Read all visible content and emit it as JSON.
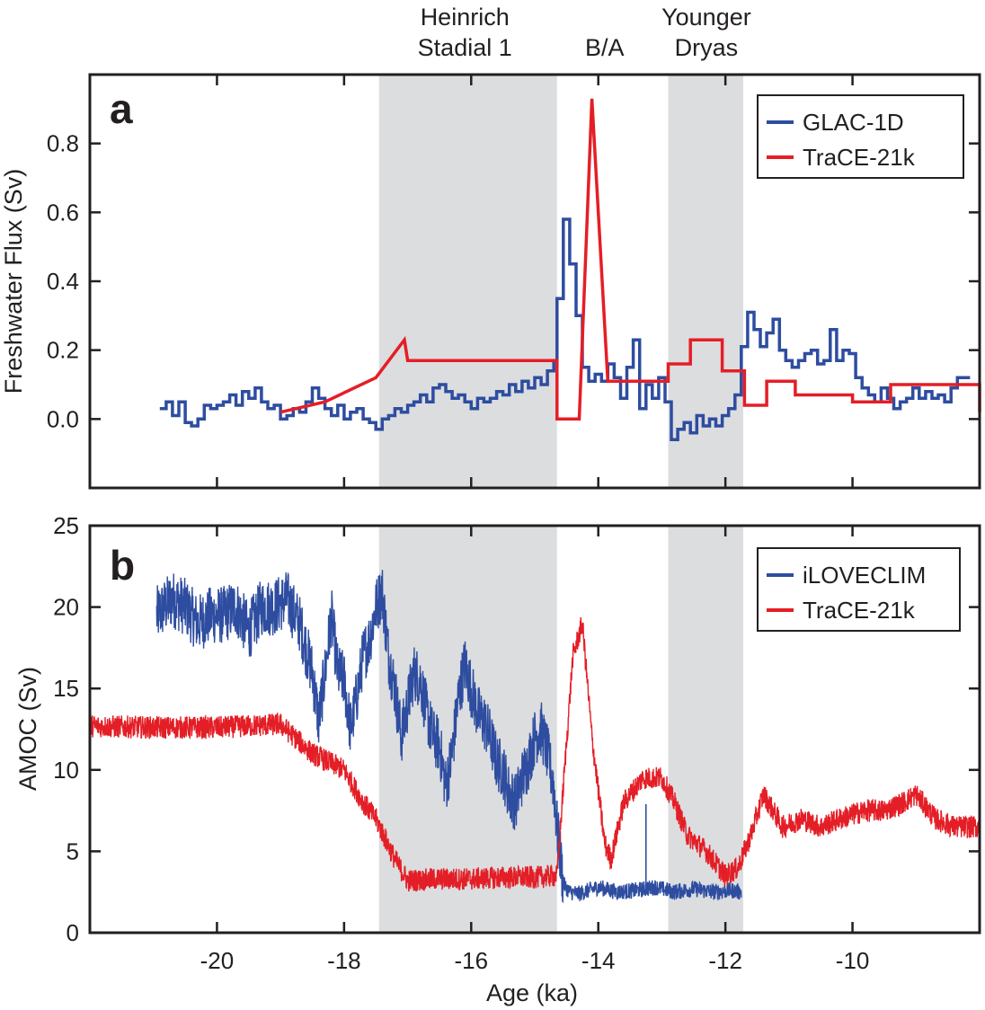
{
  "colors": {
    "blue": "#2e4da0",
    "red": "#e41e26",
    "band": "#dcdddf",
    "axis": "#231f20"
  },
  "event_labels": [
    {
      "lines": [
        "Heinrich",
        "Stadial 1"
      ],
      "x_ka": -16.1
    },
    {
      "lines": [
        "B/A"
      ],
      "x_ka": -13.9
    },
    {
      "lines": [
        "Younger",
        "Dryas"
      ],
      "x_ka": -12.3
    }
  ],
  "shaded_periods": [
    [
      -17.45,
      -14.65
    ],
    [
      -12.9,
      -11.72
    ]
  ],
  "xaxis": {
    "label": "Age (ka)",
    "range": [
      -22,
      -8
    ],
    "ticks": [
      -20,
      -18,
      -16,
      -14,
      -12,
      -10
    ]
  },
  "chart_data": [
    {
      "type": "line",
      "panel": "a",
      "ylabel": "Freshwater Flux (Sv)",
      "ylim": [
        -0.2,
        1.0
      ],
      "yticks": [
        0.0,
        0.2,
        0.4,
        0.6,
        0.8
      ],
      "ytick_labels": [
        "0.0",
        "0.2",
        "0.4",
        "0.6",
        "0.8"
      ],
      "legend": "top-right",
      "series": [
        {
          "name": "GLAC-1D",
          "color": "#2e4da0",
          "style": "step",
          "x": [
            -20.9,
            -20.8,
            -20.7,
            -20.6,
            -20.5,
            -20.4,
            -20.3,
            -20.2,
            -20.1,
            -20.0,
            -19.9,
            -19.8,
            -19.7,
            -19.6,
            -19.5,
            -19.4,
            -19.3,
            -19.2,
            -19.1,
            -19.0,
            -18.9,
            -18.8,
            -18.7,
            -18.6,
            -18.5,
            -18.4,
            -18.3,
            -18.2,
            -18.1,
            -18.0,
            -17.9,
            -17.8,
            -17.7,
            -17.6,
            -17.5,
            -17.4,
            -17.3,
            -17.2,
            -17.1,
            -17.0,
            -16.9,
            -16.8,
            -16.7,
            -16.6,
            -16.5,
            -16.4,
            -16.3,
            -16.2,
            -16.1,
            -16.0,
            -15.9,
            -15.8,
            -15.7,
            -15.6,
            -15.5,
            -15.4,
            -15.3,
            -15.2,
            -15.1,
            -15.0,
            -14.9,
            -14.8,
            -14.7,
            -14.65,
            -14.55,
            -14.45,
            -14.35,
            -14.25,
            -14.15,
            -14.05,
            -13.95,
            -13.85,
            -13.75,
            -13.65,
            -13.55,
            -13.45,
            -13.35,
            -13.25,
            -13.15,
            -13.05,
            -12.95,
            -12.85,
            -12.75,
            -12.65,
            -12.55,
            -12.45,
            -12.35,
            -12.25,
            -12.15,
            -12.05,
            -11.95,
            -11.85,
            -11.75,
            -11.65,
            -11.55,
            -11.45,
            -11.35,
            -11.25,
            -11.15,
            -11.05,
            -10.95,
            -10.85,
            -10.75,
            -10.65,
            -10.55,
            -10.45,
            -10.35,
            -10.25,
            -10.15,
            -10.05,
            -9.95,
            -9.85,
            -9.75,
            -9.65,
            -9.55,
            -9.45,
            -9.35,
            -9.25,
            -9.15,
            -9.05,
            -8.95,
            -8.85,
            -8.75,
            -8.65,
            -8.55,
            -8.45,
            -8.35,
            -8.25
          ],
          "y": [
            0.03,
            0.05,
            0.01,
            0.05,
            -0.01,
            -0.02,
            0.0,
            0.04,
            0.03,
            0.04,
            0.05,
            0.07,
            0.04,
            0.08,
            0.06,
            0.09,
            0.05,
            0.03,
            0.04,
            0.0,
            0.01,
            0.03,
            0.02,
            0.05,
            0.09,
            0.06,
            0.03,
            0.01,
            0.04,
            0.0,
            0.02,
            0.03,
            0.0,
            -0.01,
            -0.03,
            0.0,
            0.01,
            0.03,
            0.02,
            0.04,
            0.05,
            0.07,
            0.05,
            0.09,
            0.1,
            0.08,
            0.06,
            0.07,
            0.05,
            0.03,
            0.06,
            0.05,
            0.06,
            0.08,
            0.07,
            0.1,
            0.08,
            0.11,
            0.09,
            0.12,
            0.1,
            0.14,
            0.17,
            0.35,
            0.58,
            0.45,
            0.3,
            0.15,
            0.11,
            0.13,
            0.11,
            0.16,
            0.12,
            0.06,
            0.15,
            0.23,
            0.03,
            0.1,
            0.06,
            0.12,
            0.05,
            -0.06,
            -0.03,
            -0.01,
            -0.04,
            0.01,
            -0.02,
            0.0,
            -0.02,
            0.01,
            0.03,
            0.07,
            0.21,
            0.31,
            0.26,
            0.21,
            0.25,
            0.29,
            0.2,
            0.17,
            0.15,
            0.17,
            0.19,
            0.2,
            0.16,
            0.17,
            0.26,
            0.17,
            0.2,
            0.19,
            0.12,
            0.09,
            0.07,
            0.05,
            0.09,
            0.06,
            0.03,
            0.05,
            0.06,
            0.09,
            0.06,
            0.08,
            0.06,
            0.07,
            0.05,
            0.09,
            0.12,
            0.12
          ]
        },
        {
          "name": "TraCE-21k",
          "color": "#e41e26",
          "style": "line",
          "x": [
            -19.0,
            -18.3,
            -17.5,
            -17.05,
            -17.0,
            -14.65,
            -14.65,
            -14.3,
            -14.1,
            -13.85,
            -12.9,
            -12.9,
            -12.55,
            -12.55,
            -12.05,
            -12.05,
            -11.7,
            -11.7,
            -11.35,
            -11.35,
            -10.9,
            -10.9,
            -10.0,
            -10.0,
            -9.4,
            -9.4,
            -8.0,
            -8.0
          ],
          "y": [
            0.02,
            0.05,
            0.12,
            0.23,
            0.17,
            0.17,
            0.0,
            0.0,
            0.93,
            0.11,
            0.11,
            0.16,
            0.16,
            0.23,
            0.23,
            0.14,
            0.14,
            0.04,
            0.04,
            0.11,
            0.11,
            0.07,
            0.07,
            0.05,
            0.05,
            0.1,
            0.1,
            0.02
          ]
        }
      ]
    },
    {
      "type": "line",
      "panel": "b",
      "ylabel": "AMOC (Sv)",
      "ylim": [
        0,
        25
      ],
      "yticks": [
        0,
        5,
        10,
        15,
        20,
        25
      ],
      "ytick_labels": [
        "0",
        "5",
        "10",
        "15",
        "20",
        "25"
      ],
      "legend": "top-right",
      "series": [
        {
          "name": "iLOVECLIM",
          "color": "#2e4da0",
          "noise": 1.8,
          "x": [
            -20.95,
            -20.7,
            -20.5,
            -20.3,
            -20.1,
            -19.9,
            -19.7,
            -19.5,
            -19.3,
            -19.1,
            -18.9,
            -18.7,
            -18.6,
            -18.5,
            -18.4,
            -18.3,
            -18.2,
            -18.1,
            -18.0,
            -17.9,
            -17.8,
            -17.7,
            -17.6,
            -17.5,
            -17.4,
            -17.3,
            -17.2,
            -17.1,
            -17.0,
            -16.9,
            -16.8,
            -16.7,
            -16.6,
            -16.5,
            -16.4,
            -16.3,
            -16.2,
            -16.1,
            -16.0,
            -15.9,
            -15.8,
            -15.7,
            -15.6,
            -15.5,
            -15.4,
            -15.3,
            -15.2,
            -15.1,
            -15.0,
            -14.9,
            -14.8,
            -14.7,
            -14.65,
            -14.55,
            -14.45,
            -14.3,
            -14.0,
            -13.7,
            -13.4,
            -13.1,
            -12.8,
            -12.5,
            -12.2,
            -11.9,
            -11.75
          ],
          "y": [
            19.5,
            20.5,
            20.0,
            19.0,
            19.5,
            19.5,
            20.0,
            18.5,
            20.0,
            20.0,
            20.5,
            19.0,
            17.5,
            16.0,
            13.0,
            16.0,
            19.5,
            16.0,
            15.5,
            12.5,
            14.5,
            17.0,
            18.0,
            20.0,
            21.0,
            17.0,
            15.0,
            12.0,
            14.0,
            16.0,
            15.5,
            13.5,
            12.0,
            11.5,
            9.0,
            11.0,
            14.5,
            16.5,
            15.0,
            13.5,
            13.0,
            12.0,
            10.5,
            10.0,
            8.5,
            8.0,
            9.5,
            10.5,
            12.0,
            12.5,
            11.0,
            9.0,
            6.5,
            3.0,
            2.5,
            2.4,
            2.8,
            2.5,
            2.6,
            2.8,
            2.5,
            2.7,
            2.5,
            2.6,
            2.5
          ]
        },
        {
          "name": "TraCE-21k",
          "color": "#e41e26",
          "noise": 0.7,
          "x": [
            -22.0,
            -21.0,
            -20.0,
            -19.0,
            -18.5,
            -18.0,
            -17.7,
            -17.5,
            -17.2,
            -17.0,
            -16.5,
            -16.0,
            -15.5,
            -15.0,
            -14.65,
            -14.55,
            -14.4,
            -14.25,
            -14.1,
            -13.9,
            -13.8,
            -13.6,
            -13.3,
            -13.0,
            -12.8,
            -12.6,
            -12.3,
            -12.0,
            -11.8,
            -11.6,
            -11.4,
            -11.1,
            -10.8,
            -10.5,
            -10.2,
            -9.8,
            -9.5,
            -9.2,
            -9.0,
            -8.7,
            -8.4,
            -8.0
          ],
          "y": [
            12.7,
            12.6,
            12.6,
            12.8,
            11.0,
            10.0,
            8.0,
            7.0,
            4.5,
            3.2,
            3.3,
            3.3,
            3.4,
            3.4,
            3.5,
            9.0,
            17.0,
            19.0,
            12.0,
            5.5,
            4.5,
            8.0,
            9.5,
            9.5,
            8.0,
            6.0,
            5.0,
            3.5,
            4.0,
            6.0,
            8.5,
            6.5,
            7.0,
            6.5,
            7.0,
            7.5,
            7.5,
            8.0,
            8.5,
            7.0,
            6.5,
            6.5
          ]
        }
      ]
    }
  ]
}
